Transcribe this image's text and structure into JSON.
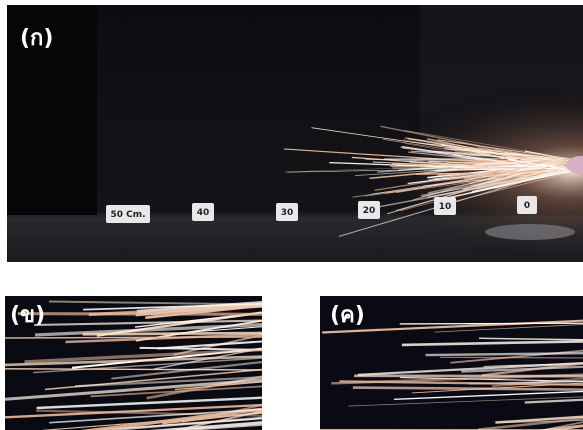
{
  "panels": [
    {
      "label": "(ก)",
      "markers": [
        "50 Cm.",
        "40",
        "30",
        "20",
        "10",
        "0"
      ]
    },
    {
      "label": "(ข)"
    },
    {
      "label": "(ค)"
    }
  ]
}
